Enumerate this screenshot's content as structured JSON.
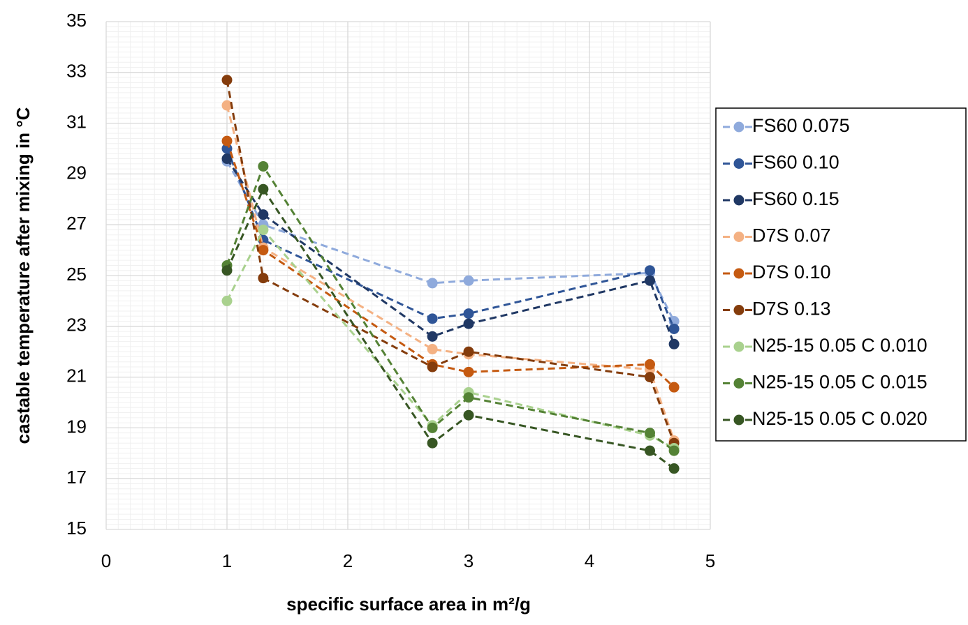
{
  "chart_data": {
    "type": "line",
    "x_label": "specific surface area in m²/g",
    "y_label": "castable temperature after mixing in °C",
    "x": [
      1,
      1.3,
      2.7,
      3,
      4.5,
      4.7
    ],
    "series": [
      {
        "name": "FS60 0.075",
        "color": "#8faadc",
        "values": [
          29.5,
          27.0,
          24.7,
          24.8,
          25.1,
          23.2
        ]
      },
      {
        "name": "FS60 0.10",
        "color": "#2f5597",
        "values": [
          30.0,
          26.4,
          23.3,
          23.5,
          25.2,
          22.9
        ]
      },
      {
        "name": "FS60 0.15",
        "color": "#203864",
        "values": [
          29.6,
          27.4,
          22.6,
          23.1,
          24.8,
          22.3
        ]
      },
      {
        "name": "D7S 0.07",
        "color": "#f4b183",
        "values": [
          31.7,
          26.1,
          22.1,
          21.9,
          21.3,
          18.5
        ]
      },
      {
        "name": "D7S 0.10",
        "color": "#c55a11",
        "values": [
          30.3,
          26.0,
          21.5,
          21.2,
          21.5,
          20.6
        ]
      },
      {
        "name": "D7S 0.13",
        "color": "#843c0c",
        "values": [
          32.7,
          24.9,
          21.4,
          22.0,
          21.0,
          18.4
        ]
      },
      {
        "name": "N25-15 0.05 C 0.010",
        "color": "#a9d18e",
        "values": [
          24.0,
          26.8,
          19.1,
          20.4,
          18.7,
          18.2
        ]
      },
      {
        "name": "N25-15 0.05 C 0.015",
        "color": "#548235",
        "values": [
          25.4,
          29.3,
          19.0,
          20.2,
          18.8,
          18.1
        ]
      },
      {
        "name": "N25-15 0.05 C 0.020",
        "color": "#375623",
        "values": [
          25.2,
          28.4,
          18.4,
          19.5,
          18.1,
          17.4
        ]
      }
    ],
    "xlim": [
      0,
      5
    ],
    "xticks": [
      0,
      1,
      2,
      3,
      4,
      5
    ],
    "ylim": [
      15,
      35
    ],
    "yticks": [
      15,
      17,
      19,
      21,
      23,
      25,
      27,
      29,
      31,
      33,
      35
    ],
    "grid": true,
    "legend": "right",
    "line_style": "dashed"
  }
}
